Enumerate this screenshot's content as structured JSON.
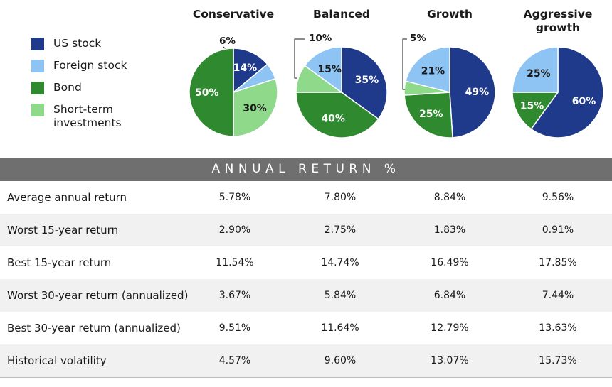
{
  "legend": [
    {
      "label": "US stock",
      "color": "#1f3a8a"
    },
    {
      "label": "Foreign stock",
      "color": "#8ec4f3"
    },
    {
      "label": "Bond",
      "color": "#2f8a2f"
    },
    {
      "label": "Short-term investments",
      "color": "#8ed98a"
    }
  ],
  "chart_data": {
    "type": "pie",
    "portfolios": [
      {
        "title": "Conservative",
        "slices": [
          {
            "series": "US stock",
            "value": 14,
            "label": "14%"
          },
          {
            "series": "Foreign stock",
            "value": 6,
            "label": "6%"
          },
          {
            "series": "Short-term investments",
            "value": 30,
            "label": "30%"
          },
          {
            "series": "Bond",
            "value": 50,
            "label": "50%"
          }
        ]
      },
      {
        "title": "Balanced",
        "slices": [
          {
            "series": "US stock",
            "value": 35,
            "label": "35%"
          },
          {
            "series": "Bond",
            "value": 40,
            "label": "40%"
          },
          {
            "series": "Short-term investments",
            "value": 10,
            "label": "10%"
          },
          {
            "series": "Foreign stock",
            "value": 15,
            "label": "15%"
          }
        ]
      },
      {
        "title": "Growth",
        "slices": [
          {
            "series": "US stock",
            "value": 49,
            "label": "49%"
          },
          {
            "series": "Bond",
            "value": 25,
            "label": "25%"
          },
          {
            "series": "Short-term investments",
            "value": 5,
            "label": "5%"
          },
          {
            "series": "Foreign stock",
            "value": 21,
            "label": "21%"
          }
        ]
      },
      {
        "title": "Aggressive growth",
        "slices": [
          {
            "series": "US stock",
            "value": 60,
            "label": "60%"
          },
          {
            "series": "Bond",
            "value": 15,
            "label": "15%"
          },
          {
            "series": "Foreign stock",
            "value": 25,
            "label": "25%"
          }
        ]
      }
    ]
  },
  "table": {
    "header": "ANNUAL RETURN %",
    "rows": [
      {
        "label": "Average annual return",
        "values": [
          "5.78%",
          "7.80%",
          "8.84%",
          "9.56%"
        ]
      },
      {
        "label": "Worst 15-year return",
        "values": [
          "2.90%",
          "2.75%",
          "1.83%",
          "0.91%"
        ]
      },
      {
        "label": "Best 15-year return",
        "values": [
          "11.54%",
          "14.74%",
          "16.49%",
          "17.85%"
        ]
      },
      {
        "label": "Worst 30-year return (annualized)",
        "values": [
          "3.67%",
          "5.84%",
          "6.84%",
          "7.44%"
        ]
      },
      {
        "label": "Best 30-year retum (annualized)",
        "values": [
          "9.51%",
          "11.64%",
          "12.79%",
          "13.63%"
        ]
      },
      {
        "label": "Historical volatility",
        "values": [
          "4.57%",
          "9.60%",
          "13.07%",
          "15.73%"
        ]
      }
    ]
  }
}
